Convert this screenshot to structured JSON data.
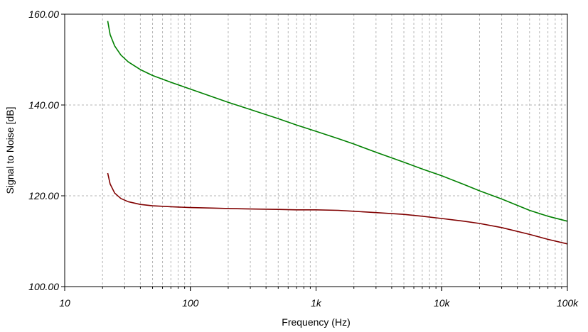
{
  "chart_data": {
    "type": "line",
    "title": "",
    "xlabel": "Frequency (Hz)",
    "ylabel": "Signal to Noise [dB]",
    "xscale": "log",
    "xlim": [
      10,
      100000
    ],
    "ylim": [
      100,
      160
    ],
    "grid": true,
    "x_tick_labels": [
      {
        "value": 10,
        "label": "10"
      },
      {
        "value": 100,
        "label": "100"
      },
      {
        "value": 1000,
        "label": "1k"
      },
      {
        "value": 10000,
        "label": "10k"
      },
      {
        "value": 100000,
        "label": "100k"
      }
    ],
    "y_tick_labels": [
      {
        "value": 100,
        "label": "100.00"
      },
      {
        "value": 120,
        "label": "120.00"
      },
      {
        "value": 140,
        "label": "140.00"
      },
      {
        "value": 160,
        "label": "160.00"
      }
    ],
    "series": [
      {
        "color": "#008000",
        "x": [
          22,
          23,
          25,
          28,
          32,
          40,
          50,
          70,
          100,
          150,
          200,
          300,
          500,
          700,
          1000,
          1500,
          2000,
          3000,
          5000,
          7000,
          10000,
          15000,
          20000,
          30000,
          50000,
          70000,
          100000
        ],
        "y": [
          158.5,
          155.5,
          153.0,
          151.0,
          149.5,
          147.8,
          146.5,
          145.0,
          143.5,
          141.8,
          140.6,
          139.0,
          137.0,
          135.6,
          134.2,
          132.6,
          131.4,
          129.6,
          127.4,
          125.9,
          124.4,
          122.5,
          121.1,
          119.3,
          116.8,
          115.5,
          114.4
        ]
      },
      {
        "color": "#800000",
        "x": [
          22,
          23,
          25,
          28,
          32,
          40,
          50,
          70,
          100,
          150,
          200,
          300,
          500,
          700,
          1000,
          1500,
          2000,
          3000,
          5000,
          7000,
          10000,
          15000,
          20000,
          30000,
          50000,
          70000,
          100000
        ],
        "y": [
          125.0,
          122.6,
          120.6,
          119.4,
          118.7,
          118.1,
          117.8,
          117.6,
          117.4,
          117.3,
          117.2,
          117.1,
          117.0,
          116.9,
          116.9,
          116.8,
          116.6,
          116.3,
          115.9,
          115.5,
          115.0,
          114.4,
          113.9,
          113.0,
          111.5,
          110.4,
          109.4
        ]
      }
    ]
  }
}
